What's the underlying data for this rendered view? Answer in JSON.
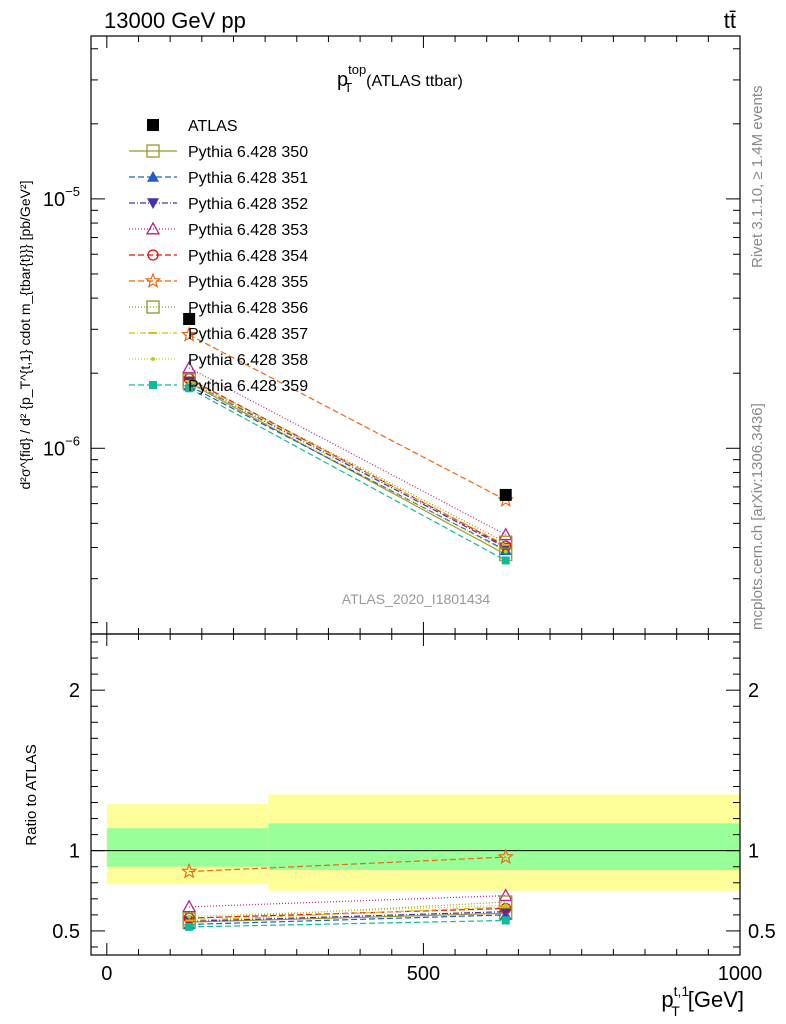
{
  "header": {
    "left": "13000 GeV pp",
    "right": "tt̄"
  },
  "plot_title": {
    "main": "p",
    "sup": "top",
    "sub": "T",
    "tail": "(ATLAS ttbar)"
  },
  "watermark": "ATLAS_2020_I1801434",
  "side_text": {
    "rivet": "Rivet 3.1.10, ≥ 1.4M events",
    "mcplots": "mcplots.cern.ch [arXiv:1306.3436]"
  },
  "xlabel": {
    "main": "p",
    "sup": "t,1",
    "sub": "T",
    "tail": "[GeV]"
  },
  "ylabel_main": "d²σ^{fid} / d² {p_T^{t,1} cdot m_{tbar{t}}} [pb/GeV²]",
  "ylabel_ratio": "Ratio to ATLAS",
  "colors": {
    "band_inner": "#99ff99",
    "band_outer": "#ffff99",
    "data": "#000000"
  },
  "chart_data": [
    {
      "type": "line",
      "panel": "main",
      "yscale": "log",
      "xlim": [
        -25,
        1000
      ],
      "ylim": [
        1.8e-07,
        4.5e-05
      ],
      "ytick_labels": [
        "10^{−6}",
        "10^{−5}"
      ],
      "x": [
        130,
        630
      ],
      "data": {
        "name": "ATLAS",
        "values": [
          3.3e-06,
          6.5e-07
        ]
      },
      "series": [
        {
          "name": "Pythia 6.428 350",
          "values": [
            1.83e-06,
            3.75e-07
          ],
          "color": "#999933",
          "marker": "open-square",
          "dash": ""
        },
        {
          "name": "Pythia 6.428 351",
          "values": [
            1.78e-06,
            3.9e-07
          ],
          "color": "#1f5fbf",
          "marker": "filled-triangle-up",
          "dash": "6,3"
        },
        {
          "name": "Pythia 6.428 352",
          "values": [
            1.85e-06,
            4e-07
          ],
          "color": "#4a2fa8",
          "marker": "filled-triangle-down",
          "dash": "6,2,1,2"
        },
        {
          "name": "Pythia 6.428 353",
          "values": [
            2.1e-06,
            4.5e-07
          ],
          "color": "#bb1e8f",
          "marker": "open-triangle-up",
          "dash": "1,2"
        },
        {
          "name": "Pythia 6.428 354",
          "values": [
            1.9e-06,
            4.05e-07
          ],
          "color": "#dd1111",
          "marker": "open-circle",
          "dash": "6,3"
        },
        {
          "name": "Pythia 6.428 355",
          "values": [
            2.85e-06,
            6.2e-07
          ],
          "color": "#ee6611",
          "marker": "open-star",
          "dash": "6,3"
        },
        {
          "name": "Pythia 6.428 356",
          "values": [
            1.88e-06,
            4.2e-07
          ],
          "color": "#889922",
          "marker": "open-square",
          "dash": "1,2"
        },
        {
          "name": "Pythia 6.428 357",
          "values": [
            1.86e-06,
            4.1e-07
          ],
          "color": "#ddbb11",
          "marker": "small-dash",
          "dash": "6,2,1,2"
        },
        {
          "name": "Pythia 6.428 358",
          "values": [
            1.84e-06,
            3.85e-07
          ],
          "color": "#bbcc22",
          "marker": "dot",
          "dash": "1,2"
        },
        {
          "name": "Pythia 6.428 359",
          "values": [
            1.74e-06,
            3.55e-07
          ],
          "color": "#11bb99",
          "marker": "filled-square",
          "dash": "6,3"
        }
      ]
    },
    {
      "type": "line",
      "panel": "ratio",
      "ylabel": "Ratio to ATLAS",
      "xlim": [
        -25,
        1000
      ],
      "ylim": [
        0.35,
        2.35
      ],
      "ytick_labels": [
        "0.5",
        "1",
        "2"
      ],
      "x": [
        130,
        630
      ],
      "xtick_labels": [
        "0",
        "500",
        "1000"
      ],
      "bands": [
        {
          "x0": 0,
          "x1": 255,
          "outer": [
            0.79,
            1.29
          ],
          "inner": [
            0.9,
            1.14
          ]
        },
        {
          "x0": 255,
          "x1": 1000,
          "outer": [
            0.75,
            1.35
          ],
          "inner": [
            0.88,
            1.17
          ]
        }
      ],
      "series": [
        {
          "name": "Pythia 6.428 350",
          "values": [
            0.555,
            0.61
          ]
        },
        {
          "name": "Pythia 6.428 351",
          "values": [
            0.54,
            0.6
          ]
        },
        {
          "name": "Pythia 6.428 352",
          "values": [
            0.56,
            0.62
          ]
        },
        {
          "name": "Pythia 6.428 353",
          "values": [
            0.65,
            0.72
          ]
        },
        {
          "name": "Pythia 6.428 354",
          "values": [
            0.58,
            0.64
          ]
        },
        {
          "name": "Pythia 6.428 355",
          "values": [
            0.87,
            0.96
          ]
        },
        {
          "name": "Pythia 6.428 356",
          "values": [
            0.575,
            0.68
          ]
        },
        {
          "name": "Pythia 6.428 357",
          "values": [
            0.565,
            0.65
          ]
        },
        {
          "name": "Pythia 6.428 358",
          "values": [
            0.59,
            0.66
          ]
        },
        {
          "name": "Pythia 6.428 359",
          "values": [
            0.525,
            0.565
          ]
        }
      ]
    }
  ]
}
